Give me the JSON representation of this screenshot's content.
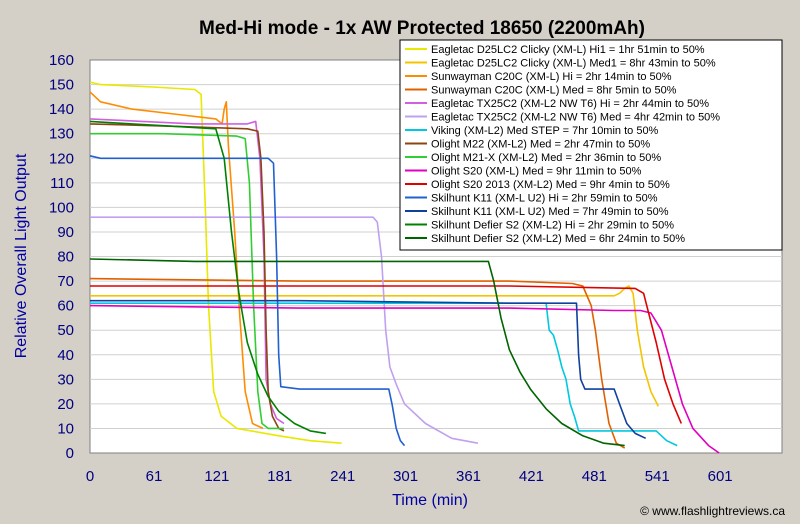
{
  "chart_data": {
    "type": "line",
    "title": "Med-Hi mode - 1x AW Protected 18650 (2200mAh)",
    "xlabel": "Time (min)",
    "ylabel": "Relative Overall Light Output",
    "xlim": [
      0,
      660
    ],
    "ylim": [
      0,
      160
    ],
    "xticks": [
      0,
      61,
      121,
      181,
      241,
      301,
      361,
      421,
      481,
      541,
      601
    ],
    "yticks": [
      0,
      10,
      20,
      30,
      40,
      50,
      60,
      70,
      80,
      90,
      100,
      110,
      120,
      130,
      140,
      150,
      160
    ],
    "grid": "horizontal",
    "legend_position": "top-right",
    "credit": "© www.flashlightreviews.ca",
    "series": [
      {
        "name": "Eagletac D25LC2 Clicky (XM-L) Hi1 = 1hr 51min to 50%",
        "color": "#e8e800",
        "points": [
          [
            0,
            151
          ],
          [
            10,
            150
          ],
          [
            60,
            149
          ],
          [
            100,
            148
          ],
          [
            106,
            146
          ],
          [
            110,
            100
          ],
          [
            113,
            60
          ],
          [
            118,
            25
          ],
          [
            125,
            15
          ],
          [
            140,
            10
          ],
          [
            180,
            7
          ],
          [
            210,
            5
          ],
          [
            240,
            4
          ]
        ]
      },
      {
        "name": "Eagletac D25LC2 Clicky (XM-L) Med1 = 8hr 43min to 50%",
        "color": "#f4c400",
        "points": [
          [
            0,
            64
          ],
          [
            100,
            64
          ],
          [
            300,
            64
          ],
          [
            500,
            64
          ],
          [
            505,
            65
          ],
          [
            510,
            67
          ],
          [
            514,
            68
          ],
          [
            518,
            65
          ],
          [
            522,
            50
          ],
          [
            528,
            35
          ],
          [
            535,
            25
          ],
          [
            542,
            19
          ]
        ]
      },
      {
        "name": "Sunwayman C20C (XM-L) Hi = 2hr 14min to 50%",
        "color": "#ff8c00",
        "points": [
          [
            0,
            147
          ],
          [
            10,
            143
          ],
          [
            40,
            140
          ],
          [
            80,
            138
          ],
          [
            120,
            136
          ],
          [
            126,
            134
          ],
          [
            128,
            140
          ],
          [
            130,
            143
          ],
          [
            132,
            125
          ],
          [
            138,
            90
          ],
          [
            143,
            55
          ],
          [
            148,
            25
          ],
          [
            155,
            12
          ],
          [
            165,
            10
          ]
        ]
      },
      {
        "name": "Sunwayman C20C (XM-L) Med = 8hr 5min to 50%",
        "color": "#e06000",
        "points": [
          [
            0,
            71
          ],
          [
            200,
            70
          ],
          [
            400,
            70
          ],
          [
            460,
            69
          ],
          [
            470,
            68
          ],
          [
            478,
            60
          ],
          [
            482,
            50
          ],
          [
            488,
            30
          ],
          [
            495,
            12
          ],
          [
            502,
            4
          ],
          [
            510,
            2
          ]
        ]
      },
      {
        "name": "Eagletac TX25C2 (XM-L2 NW T6) Hi = 2hr 44min to 50%",
        "color": "#d060e0",
        "points": [
          [
            0,
            136
          ],
          [
            50,
            135
          ],
          [
            100,
            134
          ],
          [
            150,
            134
          ],
          [
            158,
            135
          ],
          [
            162,
            120
          ],
          [
            166,
            80
          ],
          [
            168,
            30
          ],
          [
            172,
            20
          ],
          [
            178,
            14
          ],
          [
            185,
            12
          ]
        ]
      },
      {
        "name": "Eagletac TX25C2 (XM-L2 NW T6) Med = 4hr 42min to 50%",
        "color": "#c0a0f0",
        "points": [
          [
            0,
            96
          ],
          [
            100,
            96
          ],
          [
            200,
            96
          ],
          [
            270,
            96
          ],
          [
            274,
            94
          ],
          [
            278,
            80
          ],
          [
            282,
            50
          ],
          [
            286,
            35
          ],
          [
            292,
            28
          ],
          [
            300,
            20
          ],
          [
            320,
            12
          ],
          [
            345,
            6
          ],
          [
            370,
            4
          ]
        ]
      },
      {
        "name": "Viking (XM-L2) Med STEP = 7hr 10min to 50%",
        "color": "#00c8e0",
        "points": [
          [
            0,
            61
          ],
          [
            200,
            61
          ],
          [
            400,
            61
          ],
          [
            435,
            61
          ],
          [
            438,
            50
          ],
          [
            442,
            48
          ],
          [
            446,
            42
          ],
          [
            450,
            35
          ],
          [
            454,
            30
          ],
          [
            458,
            20
          ],
          [
            462,
            15
          ],
          [
            466,
            9
          ],
          [
            500,
            9
          ],
          [
            540,
            9
          ],
          [
            550,
            5
          ],
          [
            560,
            3
          ]
        ]
      },
      {
        "name": "Olight M22 (XM-L2) Med = 2hr 47min to 50%",
        "color": "#8b4513",
        "points": [
          [
            0,
            134
          ],
          [
            80,
            133
          ],
          [
            150,
            132
          ],
          [
            160,
            131
          ],
          [
            163,
            120
          ],
          [
            166,
            90
          ],
          [
            168,
            50
          ],
          [
            170,
            25
          ],
          [
            174,
            15
          ],
          [
            180,
            10
          ],
          [
            185,
            9
          ]
        ]
      },
      {
        "name": "Olight M21-X (XM-L2) Med = 2hr 36min to 50%",
        "color": "#32cd32",
        "points": [
          [
            0,
            130
          ],
          [
            70,
            130
          ],
          [
            140,
            129
          ],
          [
            148,
            128
          ],
          [
            152,
            110
          ],
          [
            156,
            60
          ],
          [
            160,
            25
          ],
          [
            164,
            12
          ],
          [
            170,
            10
          ],
          [
            180,
            10
          ],
          [
            185,
            10
          ]
        ]
      },
      {
        "name": "Olight S20 (XM-L) Med = 9hr 11min to 50%",
        "color": "#e000c0",
        "points": [
          [
            0,
            60
          ],
          [
            200,
            59
          ],
          [
            400,
            59
          ],
          [
            500,
            58
          ],
          [
            525,
            58
          ],
          [
            535,
            57
          ],
          [
            545,
            50
          ],
          [
            555,
            35
          ],
          [
            565,
            20
          ],
          [
            575,
            10
          ],
          [
            590,
            3
          ],
          [
            600,
            0
          ]
        ]
      },
      {
        "name": "Olight S20 2013 (XM-L2) Med = 9hr 4min to 50%",
        "color": "#e00000",
        "points": [
          [
            0,
            68
          ],
          [
            200,
            68
          ],
          [
            400,
            68
          ],
          [
            520,
            67
          ],
          [
            528,
            65
          ],
          [
            534,
            55
          ],
          [
            540,
            45
          ],
          [
            548,
            30
          ],
          [
            556,
            20
          ],
          [
            564,
            12
          ]
        ]
      },
      {
        "name": "Skilhunt K11 (XM-L U2) Hi = 2hr 59min to 50%",
        "color": "#2060d0",
        "points": [
          [
            0,
            121
          ],
          [
            10,
            120
          ],
          [
            100,
            120
          ],
          [
            170,
            120
          ],
          [
            175,
            118
          ],
          [
            178,
            80
          ],
          [
            180,
            40
          ],
          [
            182,
            27
          ],
          [
            200,
            26
          ],
          [
            240,
            26
          ],
          [
            270,
            26
          ],
          [
            285,
            26
          ],
          [
            288,
            20
          ],
          [
            292,
            10
          ],
          [
            296,
            5
          ],
          [
            300,
            3
          ]
        ]
      },
      {
        "name": "Skilhunt K11 (XM-L U2) Med = 7hr 49min to 50%",
        "color": "#1040a0",
        "points": [
          [
            0,
            62
          ],
          [
            200,
            62
          ],
          [
            400,
            61
          ],
          [
            460,
            61
          ],
          [
            464,
            61
          ],
          [
            466,
            40
          ],
          [
            468,
            30
          ],
          [
            472,
            26
          ],
          [
            485,
            26
          ],
          [
            500,
            26
          ],
          [
            505,
            20
          ],
          [
            512,
            12
          ],
          [
            520,
            8
          ],
          [
            530,
            6
          ]
        ]
      },
      {
        "name": "Skilhunt Defier S2 (XM-L2) Hi = 2hr 29min to 50%",
        "color": "#008000",
        "points": [
          [
            0,
            135
          ],
          [
            40,
            134
          ],
          [
            80,
            133
          ],
          [
            120,
            132
          ],
          [
            128,
            120
          ],
          [
            135,
            90
          ],
          [
            142,
            65
          ],
          [
            150,
            45
          ],
          [
            160,
            32
          ],
          [
            170,
            23
          ],
          [
            180,
            17
          ],
          [
            195,
            12
          ],
          [
            210,
            9
          ],
          [
            225,
            8
          ]
        ]
      },
      {
        "name": "Skilhunt Defier S2 (XM-L2) Med = 6hr 24min to 50%",
        "color": "#006400",
        "points": [
          [
            0,
            79
          ],
          [
            100,
            78
          ],
          [
            250,
            78
          ],
          [
            350,
            78
          ],
          [
            380,
            78
          ],
          [
            385,
            70
          ],
          [
            392,
            55
          ],
          [
            400,
            42
          ],
          [
            410,
            33
          ],
          [
            420,
            26
          ],
          [
            435,
            18
          ],
          [
            450,
            12
          ],
          [
            470,
            7
          ],
          [
            490,
            4
          ],
          [
            510,
            3
          ]
        ]
      }
    ]
  }
}
